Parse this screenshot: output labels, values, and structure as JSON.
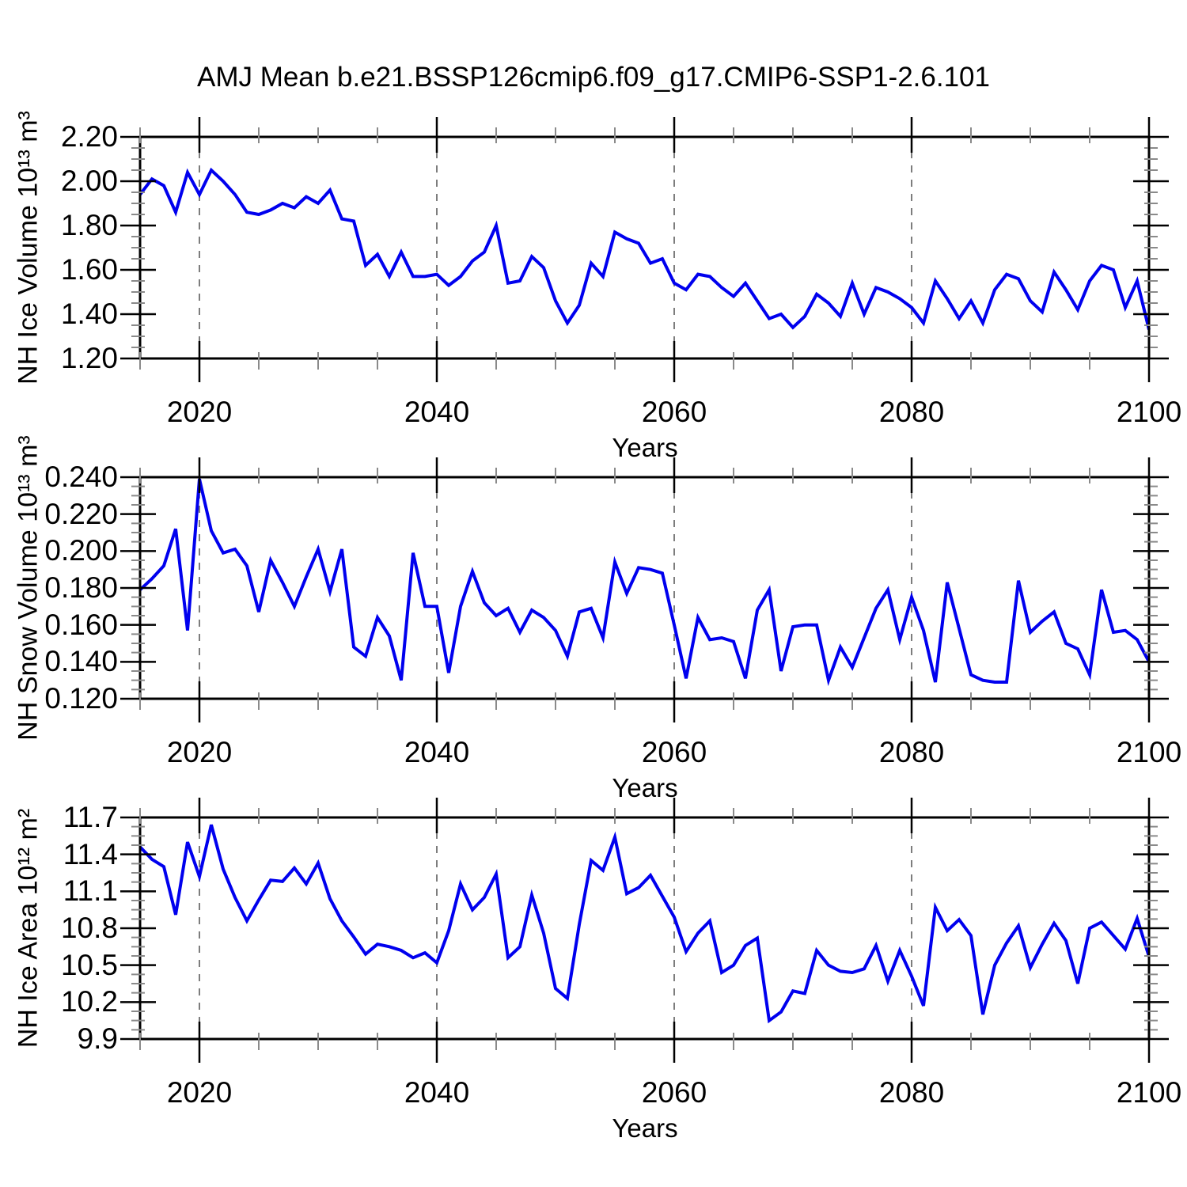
{
  "title": "AMJ Mean b.e21.BSSP126cmip6.f09_g17.CMIP6-SSP1-2.6.101",
  "colors": {
    "line": "#0000ee",
    "frame": "#000000",
    "major_tick": "#000000",
    "minor_tick": "#8a8a8a",
    "grid_dash": "#7d7d7d",
    "background": "#ffffff"
  },
  "x_axis": {
    "label": "Years",
    "range": [
      2015,
      2100
    ],
    "major_ticks": [
      2020,
      2040,
      2060,
      2080,
      2100
    ],
    "minor_step": 5,
    "dashed_gridlines": [
      2020,
      2040,
      2060,
      2080
    ]
  },
  "years": [
    2015,
    2016,
    2017,
    2018,
    2019,
    2020,
    2021,
    2022,
    2023,
    2024,
    2025,
    2026,
    2027,
    2028,
    2029,
    2030,
    2031,
    2032,
    2033,
    2034,
    2035,
    2036,
    2037,
    2038,
    2039,
    2040,
    2041,
    2042,
    2043,
    2044,
    2045,
    2046,
    2047,
    2048,
    2049,
    2050,
    2051,
    2052,
    2053,
    2054,
    2055,
    2056,
    2057,
    2058,
    2059,
    2060,
    2061,
    2062,
    2063,
    2064,
    2065,
    2066,
    2067,
    2068,
    2069,
    2070,
    2071,
    2072,
    2073,
    2074,
    2075,
    2076,
    2077,
    2078,
    2079,
    2080,
    2081,
    2082,
    2083,
    2084,
    2085,
    2086,
    2087,
    2088,
    2089,
    2090,
    2091,
    2092,
    2093,
    2094,
    2095,
    2096,
    2097,
    2098,
    2099,
    2100
  ],
  "chart_data": [
    {
      "type": "line",
      "name": "nh-ice-volume",
      "ylabel": "NH Ice Volume 10¹³ m³",
      "xlabel": "Years",
      "ylim": [
        1.2,
        2.2
      ],
      "ytick_labels": [
        "2.20",
        "2.00",
        "1.80",
        "1.60",
        "1.40",
        "1.20"
      ],
      "yminor_step": 0.05,
      "xtick_labels": [
        "2020",
        "2040",
        "2060",
        "2080",
        "2100"
      ],
      "grid": "dashed-vertical-only",
      "legend": "none",
      "values": [
        1.94,
        2.01,
        1.98,
        1.86,
        2.04,
        1.94,
        2.05,
        2.0,
        1.94,
        1.86,
        1.85,
        1.87,
        1.9,
        1.88,
        1.93,
        1.9,
        1.96,
        1.83,
        1.82,
        1.62,
        1.67,
        1.57,
        1.68,
        1.57,
        1.57,
        1.58,
        1.53,
        1.57,
        1.64,
        1.68,
        1.8,
        1.54,
        1.55,
        1.66,
        1.61,
        1.46,
        1.36,
        1.44,
        1.63,
        1.57,
        1.77,
        1.74,
        1.72,
        1.63,
        1.65,
        1.54,
        1.51,
        1.58,
        1.57,
        1.52,
        1.48,
        1.54,
        1.46,
        1.38,
        1.4,
        1.34,
        1.39,
        1.49,
        1.45,
        1.39,
        1.54,
        1.4,
        1.52,
        1.5,
        1.47,
        1.43,
        1.36,
        1.55,
        1.47,
        1.38,
        1.46,
        1.36,
        1.51,
        1.58,
        1.56,
        1.46,
        1.41,
        1.59,
        1.51,
        1.42,
        1.55,
        1.62,
        1.6,
        1.43,
        1.55,
        1.33
      ]
    },
    {
      "type": "line",
      "name": "nh-snow-volume",
      "ylabel": "NH Snow Volume 10¹³ m³",
      "xlabel": "Years",
      "ylim": [
        0.12,
        0.24
      ],
      "ytick_labels": [
        "0.240",
        "0.220",
        "0.200",
        "0.180",
        "0.160",
        "0.140",
        "0.120"
      ],
      "yminor_step": 0.005,
      "xtick_labels": [
        "2020",
        "2040",
        "2060",
        "2080",
        "2100"
      ],
      "grid": "dashed-vertical-only",
      "legend": "none",
      "values": [
        0.179,
        0.185,
        0.192,
        0.212,
        0.157,
        0.239,
        0.211,
        0.199,
        0.201,
        0.192,
        0.167,
        0.195,
        0.183,
        0.17,
        0.186,
        0.201,
        0.178,
        0.201,
        0.148,
        0.143,
        0.164,
        0.154,
        0.13,
        0.199,
        0.17,
        0.17,
        0.134,
        0.17,
        0.189,
        0.172,
        0.165,
        0.169,
        0.156,
        0.168,
        0.164,
        0.157,
        0.143,
        0.167,
        0.169,
        0.153,
        0.194,
        0.177,
        0.191,
        0.19,
        0.188,
        0.16,
        0.131,
        0.164,
        0.152,
        0.153,
        0.151,
        0.131,
        0.168,
        0.179,
        0.135,
        0.159,
        0.16,
        0.16,
        0.13,
        0.148,
        0.137,
        0.153,
        0.169,
        0.179,
        0.152,
        0.175,
        0.157,
        0.129,
        0.183,
        0.158,
        0.133,
        0.13,
        0.129,
        0.129,
        0.184,
        0.156,
        0.162,
        0.167,
        0.15,
        0.147,
        0.133,
        0.179,
        0.156,
        0.157,
        0.152,
        0.14
      ]
    },
    {
      "type": "line",
      "name": "nh-ice-area",
      "ylabel": "NH Ice Area 10¹² m²",
      "xlabel": "Years",
      "ylim": [
        9.9,
        11.7
      ],
      "ytick_labels": [
        "11.7",
        "11.4",
        "11.1",
        "10.8",
        "10.5",
        "10.2",
        "9.9"
      ],
      "yminor_step": 0.075,
      "xtick_labels": [
        "2020",
        "2040",
        "2060",
        "2080",
        "2100"
      ],
      "grid": "dashed-vertical-only",
      "legend": "none",
      "values": [
        11.46,
        11.36,
        11.3,
        10.91,
        11.5,
        11.22,
        11.64,
        11.28,
        11.05,
        10.86,
        11.03,
        11.19,
        11.18,
        11.29,
        11.16,
        11.33,
        11.04,
        10.86,
        10.73,
        10.59,
        10.67,
        10.65,
        10.62,
        10.56,
        10.6,
        10.52,
        10.78,
        11.16,
        10.95,
        11.05,
        11.24,
        10.56,
        10.65,
        11.07,
        10.76,
        10.31,
        10.23,
        10.83,
        11.35,
        11.27,
        11.54,
        11.08,
        11.13,
        11.23,
        11.06,
        10.89,
        10.61,
        10.76,
        10.86,
        10.44,
        10.5,
        10.66,
        10.72,
        10.05,
        10.12,
        10.29,
        10.27,
        10.62,
        10.5,
        10.45,
        10.44,
        10.47,
        10.66,
        10.37,
        10.62,
        10.41,
        10.17,
        10.97,
        10.78,
        10.87,
        10.74,
        10.1,
        10.5,
        10.68,
        10.82,
        10.48,
        10.67,
        10.84,
        10.7,
        10.35,
        10.8,
        10.85,
        10.74,
        10.63,
        10.88,
        10.57
      ]
    }
  ]
}
